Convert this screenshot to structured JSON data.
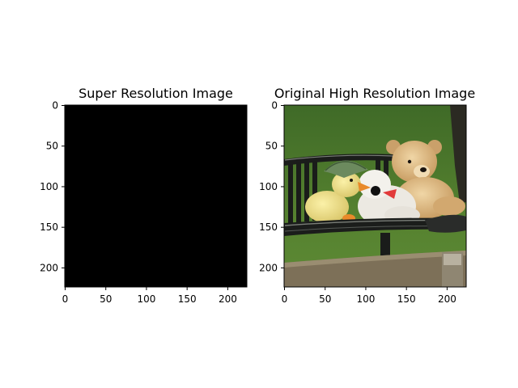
{
  "chart_data": [
    {
      "type": "image",
      "title": "Super Resolution Image",
      "xlabel": "",
      "ylabel": "",
      "xlim": [
        0,
        224
      ],
      "ylim": [
        224,
        0
      ],
      "x_ticks": [
        0,
        50,
        100,
        150,
        200
      ],
      "y_ticks": [
        0,
        50,
        100,
        150,
        200
      ],
      "image_content": "solid black",
      "image_color": "#000000"
    },
    {
      "type": "image",
      "title": "Original High Resolution Image",
      "xlabel": "",
      "ylabel": "",
      "xlim": [
        0,
        224
      ],
      "ylim": [
        224,
        0
      ],
      "x_ticks": [
        0,
        50,
        100,
        150,
        200
      ],
      "y_ticks": [
        0,
        50,
        100,
        150,
        200
      ],
      "image_content": "photo: plush teddy bear and yellow duck toy sitting on a black park bench with green grass background",
      "colors": {
        "grass": "#4f7a2e",
        "grass_dark": "#3e6424",
        "bench": "#1b1d1b",
        "bench_highlight": "#6b6f6a",
        "teddy": "#d8b27c",
        "teddy_light": "#ecd2a2",
        "duck": "#efe18a",
        "white_plush": "#ece9e2",
        "beak": "#e98a2a",
        "hat": "#6c8a5e",
        "wood": "#8a7a5e",
        "tree": "#2b2a22"
      }
    }
  ]
}
